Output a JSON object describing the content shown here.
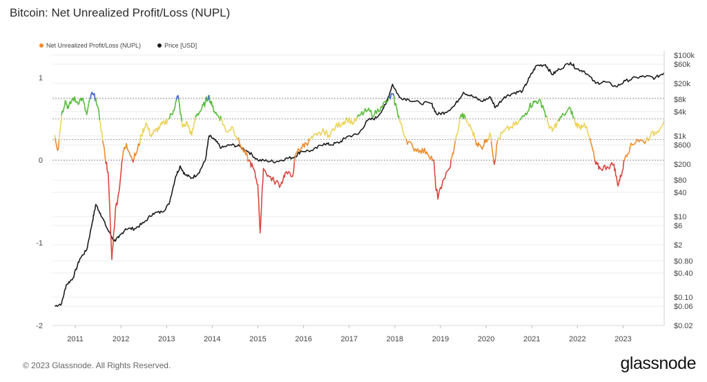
{
  "title": "Bitcoin: Net Unrealized Profit/Loss (NUPL)",
  "footer": "© 2023 Glassnode. All Rights Reserved.",
  "brand": "glassnode",
  "colors": {
    "nupl_legend": "#ef8b2c",
    "price": "#1b1b1b",
    "band_capitulation": "#d9473f",
    "band_hope": "#ef8b2c",
    "band_optimism": "#ecd35b",
    "band_belief": "#59bd3c",
    "band_euphoria": "#3b5bd9"
  },
  "chart_data": {
    "type": "line",
    "title": "Bitcoin: Net Unrealized Profit/Loss (NUPL)",
    "legend_position": "top-left",
    "grid": true,
    "x_ticks": [
      "2011",
      "2012",
      "2013",
      "2014",
      "2015",
      "2016",
      "2017",
      "2018",
      "2019",
      "2020",
      "2021",
      "2022",
      "2023"
    ],
    "xlim": [
      2010.5,
      2023.9
    ],
    "y_left": {
      "ticks": [
        "1",
        "0",
        "-1",
        "-2"
      ],
      "lim": [
        -2,
        1.27
      ]
    },
    "y_right": {
      "scale": "log",
      "ticks": [
        "$100k",
        "$60k",
        "$20k",
        "$8k",
        "$4k",
        "$1k",
        "$600",
        "$200",
        "$80",
        "$40",
        "$10",
        "$6",
        "$2",
        "$0.80",
        "$0.40",
        "$0.10",
        "$0.06",
        "$0.02"
      ],
      "lim": [
        0.02,
        100000
      ]
    },
    "zone_thresholds": [
      0.75,
      0.5,
      0.25,
      0
    ],
    "series": [
      {
        "name": "Net Unrealized Profit/Loss (NUPL)",
        "axis": "left",
        "points": [
          [
            2010.55,
            0.3
          ],
          [
            2010.62,
            0.12
          ],
          [
            2010.7,
            0.55
          ],
          [
            2010.78,
            0.72
          ],
          [
            2010.85,
            0.63
          ],
          [
            2010.95,
            0.75
          ],
          [
            2011.05,
            0.7
          ],
          [
            2011.15,
            0.75
          ],
          [
            2011.25,
            0.55
          ],
          [
            2011.35,
            0.8
          ],
          [
            2011.45,
            0.75
          ],
          [
            2011.55,
            0.45
          ],
          [
            2011.65,
            0.05
          ],
          [
            2011.72,
            -0.15
          ],
          [
            2011.8,
            -1.2
          ],
          [
            2011.88,
            -0.6
          ],
          [
            2011.95,
            -0.4
          ],
          [
            2012.05,
            0.1
          ],
          [
            2012.12,
            0.2
          ],
          [
            2012.25,
            0.0
          ],
          [
            2012.35,
            0.1
          ],
          [
            2012.45,
            0.3
          ],
          [
            2012.55,
            0.45
          ],
          [
            2012.65,
            0.3
          ],
          [
            2012.75,
            0.35
          ],
          [
            2012.85,
            0.4
          ],
          [
            2012.95,
            0.45
          ],
          [
            2013.05,
            0.5
          ],
          [
            2013.15,
            0.6
          ],
          [
            2013.25,
            0.78
          ],
          [
            2013.35,
            0.4
          ],
          [
            2013.45,
            0.45
          ],
          [
            2013.55,
            0.3
          ],
          [
            2013.65,
            0.55
          ],
          [
            2013.75,
            0.6
          ],
          [
            2013.85,
            0.7
          ],
          [
            2013.92,
            0.78
          ],
          [
            2014.0,
            0.65
          ],
          [
            2014.1,
            0.55
          ],
          [
            2014.2,
            0.5
          ],
          [
            2014.3,
            0.35
          ],
          [
            2014.45,
            0.4
          ],
          [
            2014.6,
            0.2
          ],
          [
            2014.7,
            0.1
          ],
          [
            2014.8,
            0.0
          ],
          [
            2014.9,
            -0.1
          ],
          [
            2015.0,
            -0.3
          ],
          [
            2015.05,
            -0.88
          ],
          [
            2015.12,
            -0.1
          ],
          [
            2015.25,
            -0.2
          ],
          [
            2015.35,
            -0.25
          ],
          [
            2015.5,
            -0.3
          ],
          [
            2015.6,
            -0.15
          ],
          [
            2015.75,
            -0.2
          ],
          [
            2015.85,
            0.1
          ],
          [
            2015.95,
            0.15
          ],
          [
            2016.05,
            0.2
          ],
          [
            2016.15,
            0.25
          ],
          [
            2016.3,
            0.3
          ],
          [
            2016.45,
            0.35
          ],
          [
            2016.55,
            0.3
          ],
          [
            2016.7,
            0.4
          ],
          [
            2016.85,
            0.45
          ],
          [
            2016.95,
            0.5
          ],
          [
            2017.1,
            0.45
          ],
          [
            2017.25,
            0.55
          ],
          [
            2017.4,
            0.6
          ],
          [
            2017.55,
            0.55
          ],
          [
            2017.7,
            0.65
          ],
          [
            2017.85,
            0.72
          ],
          [
            2017.95,
            0.8
          ],
          [
            2018.05,
            0.6
          ],
          [
            2018.12,
            0.45
          ],
          [
            2018.25,
            0.25
          ],
          [
            2018.4,
            0.15
          ],
          [
            2018.55,
            0.12
          ],
          [
            2018.7,
            0.1
          ],
          [
            2018.85,
            0.0
          ],
          [
            2018.9,
            -0.35
          ],
          [
            2018.95,
            -0.45
          ],
          [
            2019.05,
            -0.25
          ],
          [
            2019.2,
            -0.1
          ],
          [
            2019.3,
            0.15
          ],
          [
            2019.45,
            0.55
          ],
          [
            2019.55,
            0.5
          ],
          [
            2019.7,
            0.35
          ],
          [
            2019.8,
            0.2
          ],
          [
            2019.9,
            0.15
          ],
          [
            2020.0,
            0.25
          ],
          [
            2020.1,
            0.3
          ],
          [
            2020.18,
            -0.05
          ],
          [
            2020.25,
            0.25
          ],
          [
            2020.4,
            0.35
          ],
          [
            2020.55,
            0.4
          ],
          [
            2020.7,
            0.45
          ],
          [
            2020.85,
            0.55
          ],
          [
            2020.95,
            0.65
          ],
          [
            2021.05,
            0.7
          ],
          [
            2021.15,
            0.72
          ],
          [
            2021.25,
            0.65
          ],
          [
            2021.35,
            0.45
          ],
          [
            2021.45,
            0.35
          ],
          [
            2021.55,
            0.45
          ],
          [
            2021.7,
            0.55
          ],
          [
            2021.85,
            0.62
          ],
          [
            2021.95,
            0.45
          ],
          [
            2022.05,
            0.4
          ],
          [
            2022.15,
            0.45
          ],
          [
            2022.3,
            0.2
          ],
          [
            2022.4,
            -0.05
          ],
          [
            2022.5,
            -0.1
          ],
          [
            2022.65,
            -0.08
          ],
          [
            2022.8,
            -0.05
          ],
          [
            2022.88,
            -0.3
          ],
          [
            2022.95,
            -0.2
          ],
          [
            2023.05,
            0.05
          ],
          [
            2023.15,
            0.15
          ],
          [
            2023.3,
            0.25
          ],
          [
            2023.45,
            0.22
          ],
          [
            2023.6,
            0.3
          ],
          [
            2023.75,
            0.35
          ],
          [
            2023.9,
            0.48
          ]
        ]
      },
      {
        "name": "Price [USD]",
        "axis": "right",
        "points": [
          [
            2010.55,
            0.06
          ],
          [
            2010.7,
            0.07
          ],
          [
            2010.8,
            0.2
          ],
          [
            2010.95,
            0.3
          ],
          [
            2011.1,
            0.9
          ],
          [
            2011.25,
            1.5
          ],
          [
            2011.38,
            8
          ],
          [
            2011.45,
            20
          ],
          [
            2011.55,
            12
          ],
          [
            2011.7,
            5
          ],
          [
            2011.85,
            2.5
          ],
          [
            2011.95,
            3
          ],
          [
            2012.1,
            5
          ],
          [
            2012.3,
            5
          ],
          [
            2012.5,
            7
          ],
          [
            2012.7,
            12
          ],
          [
            2012.9,
            13
          ],
          [
            2013.05,
            20
          ],
          [
            2013.2,
            100
          ],
          [
            2013.3,
            180
          ],
          [
            2013.4,
            110
          ],
          [
            2013.55,
            90
          ],
          [
            2013.7,
            120
          ],
          [
            2013.85,
            250
          ],
          [
            2013.93,
            1000
          ],
          [
            2014.05,
            800
          ],
          [
            2014.2,
            500
          ],
          [
            2014.4,
            600
          ],
          [
            2014.6,
            550
          ],
          [
            2014.8,
            400
          ],
          [
            2015.0,
            250
          ],
          [
            2015.2,
            240
          ],
          [
            2015.4,
            230
          ],
          [
            2015.6,
            270
          ],
          [
            2015.8,
            300
          ],
          [
            2015.95,
            420
          ],
          [
            2016.2,
            430
          ],
          [
            2016.45,
            650
          ],
          [
            2016.6,
            600
          ],
          [
            2016.8,
            700
          ],
          [
            2016.95,
            960
          ],
          [
            2017.2,
            1100
          ],
          [
            2017.4,
            2400
          ],
          [
            2017.6,
            2800
          ],
          [
            2017.8,
            6000
          ],
          [
            2017.95,
            19000
          ],
          [
            2018.1,
            9000
          ],
          [
            2018.3,
            8000
          ],
          [
            2018.55,
            6500
          ],
          [
            2018.8,
            6400
          ],
          [
            2018.92,
            3400
          ],
          [
            2019.1,
            3800
          ],
          [
            2019.3,
            5500
          ],
          [
            2019.5,
            12000
          ],
          [
            2019.7,
            9500
          ],
          [
            2019.9,
            7200
          ],
          [
            2020.1,
            9000
          ],
          [
            2020.2,
            5000
          ],
          [
            2020.4,
            9300
          ],
          [
            2020.6,
            11500
          ],
          [
            2020.8,
            13000
          ],
          [
            2020.95,
            28000
          ],
          [
            2021.1,
            55000
          ],
          [
            2021.3,
            58000
          ],
          [
            2021.45,
            33000
          ],
          [
            2021.6,
            45000
          ],
          [
            2021.85,
            66000
          ],
          [
            2021.98,
            46000
          ],
          [
            2022.15,
            40000
          ],
          [
            2022.4,
            20000
          ],
          [
            2022.6,
            22000
          ],
          [
            2022.85,
            16500
          ],
          [
            2023.05,
            23000
          ],
          [
            2023.3,
            28000
          ],
          [
            2023.5,
            30000
          ],
          [
            2023.7,
            27000
          ],
          [
            2023.9,
            37000
          ]
        ]
      }
    ]
  }
}
